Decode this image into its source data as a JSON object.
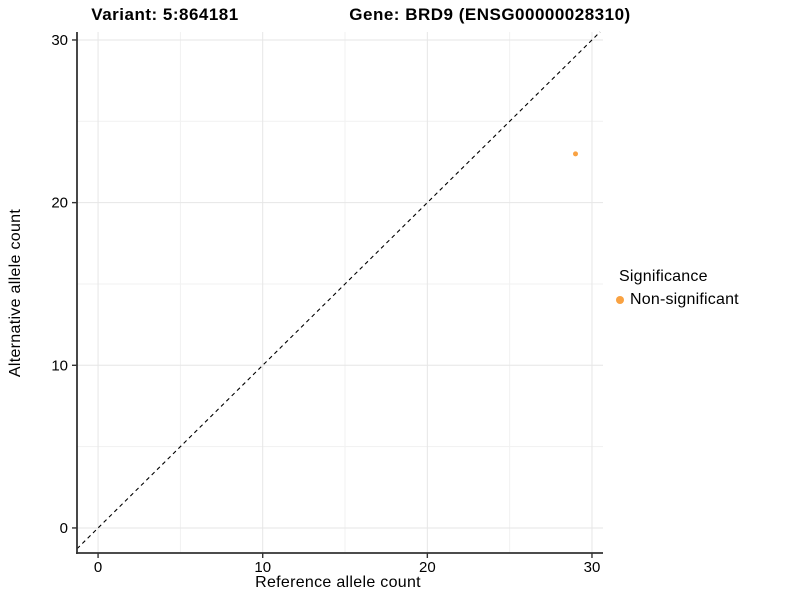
{
  "chart_data": {
    "type": "scatter",
    "titles": {
      "left": "Variant: 5:864181",
      "right": "Gene: BRD9 (ENSG00000028310)"
    },
    "xlabel": "Reference allele count",
    "ylabel": "Alternative allele count",
    "xlim": [
      -1.28,
      30.67
    ],
    "ylim": [
      -1.54,
      30.49
    ],
    "x_ticks": [
      0,
      10,
      20,
      30
    ],
    "y_ticks": [
      0,
      10,
      20,
      30
    ],
    "x_minor_gridlines": [
      5,
      15,
      25
    ],
    "y_minor_gridlines": [
      5,
      15,
      25
    ],
    "grid": "major+minor",
    "reference_line": {
      "kind": "identity y=x",
      "style": "dashed"
    },
    "series": [
      {
        "name": "Non-significant",
        "color": "#F9A242",
        "point_radius": 2.5,
        "points": [
          {
            "x": 29,
            "y": 23
          }
        ]
      }
    ],
    "legend": {
      "title": "Significance",
      "position": "right",
      "entries": [
        {
          "label": "Non-significant",
          "color": "#F9A242"
        }
      ]
    },
    "colors": {
      "background": "#FFFFFF",
      "grid_major": "#E6E6E6",
      "grid_minor": "#F1F1F1",
      "axis_line": "#333333",
      "tick_mark": "#333333",
      "text": "#000000",
      "reference_line": "#000000"
    }
  }
}
